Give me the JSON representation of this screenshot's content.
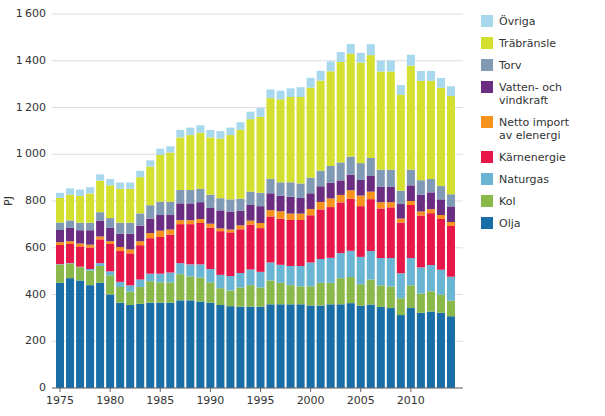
{
  "chart_data": {
    "type": "bar",
    "stacked": true,
    "ylabel": "PJ",
    "x": [
      1975,
      1976,
      1977,
      1978,
      1979,
      1980,
      1981,
      1982,
      1983,
      1984,
      1985,
      1986,
      1987,
      1988,
      1989,
      1990,
      1991,
      1992,
      1993,
      1994,
      1995,
      1996,
      1997,
      1998,
      1999,
      2000,
      2001,
      2002,
      2003,
      2004,
      2005,
      2006,
      2007,
      2008,
      2009,
      2010,
      2011,
      2012,
      2013,
      2014
    ],
    "xlim": [
      1974.2,
      2015.2
    ],
    "xticks": [
      1975,
      1980,
      1985,
      1990,
      1995,
      2000,
      2005,
      2010
    ],
    "ylim": [
      0,
      1600
    ],
    "yticks": [
      0,
      200,
      400,
      600,
      800,
      {
        "value": 1000,
        "label": "1 000"
      },
      {
        "value": 1200,
        "label": "1 200"
      },
      {
        "value": 1400,
        "label": "1 400"
      },
      {
        "value": 1600,
        "label": "1 600"
      }
    ],
    "grid": true,
    "legend": "right",
    "series": [
      {
        "name": "Olja",
        "color": "#1a6ea8",
        "values": [
          450,
          470,
          460,
          440,
          450,
          400,
          365,
          355,
          360,
          365,
          365,
          365,
          375,
          375,
          370,
          365,
          355,
          350,
          348,
          348,
          348,
          358,
          358,
          358,
          358,
          353,
          353,
          358,
          358,
          363,
          352,
          357,
          347,
          342,
          312,
          342,
          322,
          327,
          322,
          307
        ]
      },
      {
        "name": "Kol",
        "color": "#8ab84a",
        "values": [
          78,
          62,
          57,
          62,
          72,
          82,
          67,
          57,
          72,
          92,
          87,
          87,
          112,
          102,
          102,
          87,
          72,
          67,
          82,
          92,
          82,
          102,
          92,
          82,
          77,
          82,
          97,
          92,
          112,
          112,
          92,
          107,
          92,
          92,
          72,
          97,
          82,
          87,
          77,
          67
        ]
      },
      {
        "name": "Naturgas",
        "color": "#6ab4d4",
        "values": [
          2,
          2,
          2,
          7,
          12,
          17,
          22,
          27,
          32,
          32,
          37,
          42,
          47,
          52,
          57,
          57,
          57,
          62,
          62,
          67,
          67,
          77,
          77,
          82,
          87,
          102,
          102,
          107,
          107,
          112,
          117,
          122,
          117,
          122,
          107,
          117,
          112,
          112,
          107,
          102
        ]
      },
      {
        "name": "Kärnenergie",
        "color": "#e8174a",
        "values": [
          82,
          82,
          87,
          92,
          102,
          117,
          132,
          137,
          147,
          152,
          157,
          162,
          167,
          172,
          177,
          177,
          187,
          187,
          187,
          192,
          187,
          197,
          197,
          197,
          197,
          202,
          212,
          217,
          217,
          222,
          217,
          222,
          212,
          217,
          217,
          227,
          222,
          222,
          217,
          217
        ]
      },
      {
        "name": "Netto import\nav elenergi",
        "color": "#f5931e",
        "values": [
          12,
          12,
          12,
          12,
          12,
          12,
          17,
          17,
          17,
          22,
          27,
          22,
          17,
          17,
          17,
          17,
          12,
          12,
          17,
          17,
          22,
          27,
          32,
          27,
          27,
          27,
          32,
          37,
          32,
          37,
          45,
          32,
          27,
          22,
          17,
          17,
          17,
          17,
          17,
          17
        ]
      },
      {
        "name": "Vatten- och\nvindkraft",
        "color": "#6b2d82",
        "values": [
          52,
          57,
          57,
          62,
          67,
          57,
          57,
          67,
          67,
          62,
          67,
          62,
          72,
          72,
          72,
          67,
          77,
          77,
          62,
          67,
          72,
          72,
          67,
          72,
          67,
          67,
          67,
          67,
          62,
          67,
          67,
          67,
          67,
          67,
          62,
          67,
          72,
          72,
          67,
          67
        ]
      },
      {
        "name": "Torv",
        "color": "#8099b4",
        "values": [
          32,
          32,
          32,
          32,
          37,
          42,
          47,
          47,
          52,
          57,
          57,
          57,
          57,
          57,
          57,
          57,
          52,
          52,
          52,
          57,
          57,
          62,
          57,
          62,
          62,
          67,
          67,
          72,
          77,
          77,
          72,
          77,
          72,
          72,
          57,
          67,
          62,
          57,
          57,
          52
        ]
      },
      {
        "name": "Träbränsle",
        "color": "#d4e030",
        "values": [
          105,
          110,
          115,
          125,
          135,
          140,
          145,
          145,
          155,
          165,
          200,
          210,
          225,
          235,
          240,
          245,
          255,
          275,
          295,
          310,
          325,
          345,
          355,
          365,
          370,
          385,
          385,
          405,
          430,
          440,
          430,
          440,
          420,
          420,
          410,
          445,
          425,
          420,
          420,
          420
        ]
      },
      {
        "name": "Övriga",
        "color": "#a8d8ee",
        "values": [
          22,
          27,
          27,
          27,
          27,
          27,
          27,
          27,
          27,
          27,
          27,
          27,
          32,
          32,
          32,
          32,
          32,
          32,
          32,
          32,
          37,
          37,
          37,
          37,
          42,
          42,
          42,
          42,
          42,
          42,
          42,
          47,
          47,
          47,
          42,
          47,
          42,
          42,
          42,
          42
        ]
      }
    ]
  }
}
